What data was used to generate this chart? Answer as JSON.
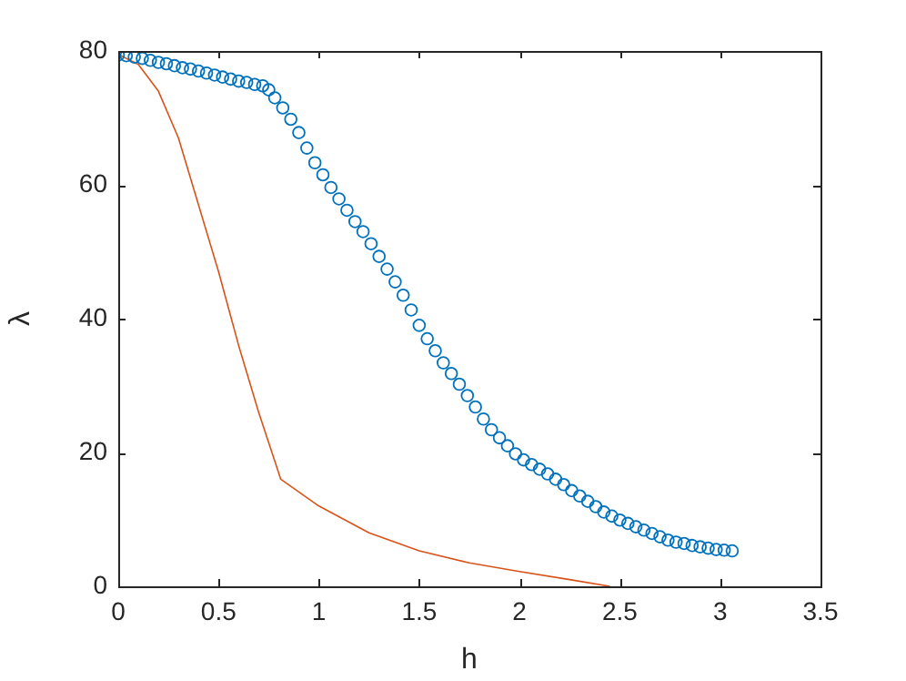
{
  "chart_data": {
    "type": "scatter",
    "xlabel": "h",
    "ylabel": "λ",
    "xlim": [
      0,
      3.5
    ],
    "ylim": [
      0,
      80
    ],
    "xticks": [
      0,
      0.5,
      1,
      1.5,
      2,
      2.5,
      3,
      3.5
    ],
    "yticks": [
      0,
      20,
      40,
      60,
      80
    ],
    "grid": false,
    "legend": false,
    "series": [
      {
        "type": "scatter",
        "marker": "circle",
        "color": "#0072bd",
        "x": [
          0,
          0.04,
          0.08,
          0.12,
          0.16,
          0.2,
          0.24,
          0.28,
          0.32,
          0.36,
          0.4,
          0.44,
          0.48,
          0.52,
          0.56,
          0.6,
          0.64,
          0.68,
          0.72,
          0.75,
          0.78,
          0.82,
          0.86,
          0.9,
          0.94,
          0.98,
          1.02,
          1.06,
          1.1,
          1.14,
          1.18,
          1.22,
          1.26,
          1.3,
          1.34,
          1.38,
          1.42,
          1.46,
          1.5,
          1.54,
          1.58,
          1.62,
          1.66,
          1.7,
          1.74,
          1.78,
          1.82,
          1.86,
          1.9,
          1.94,
          1.98,
          2.02,
          2.06,
          2.1,
          2.14,
          2.18,
          2.22,
          2.26,
          2.3,
          2.34,
          2.38,
          2.42,
          2.46,
          2.5,
          2.54,
          2.58,
          2.62,
          2.66,
          2.7,
          2.74,
          2.78,
          2.82,
          2.86,
          2.9,
          2.94,
          2.98,
          3.02,
          3.06
        ],
        "values": [
          79.4,
          79.3,
          79.1,
          78.9,
          78.6,
          78.3,
          78.1,
          77.8,
          77.5,
          77.3,
          77,
          76.7,
          76.4,
          76.1,
          75.8,
          75.5,
          75.3,
          75,
          74.8,
          74.2,
          73,
          71.5,
          69.8,
          67.8,
          65.5,
          63.3,
          61.5,
          59.6,
          57.9,
          56.2,
          54.5,
          53,
          51.2,
          49.3,
          47.4,
          45.5,
          43.5,
          41.3,
          39,
          37,
          35.2,
          33.4,
          31.8,
          30.2,
          28.5,
          26.8,
          25,
          23.4,
          22.2,
          21,
          19.8,
          18.9,
          18.2,
          17.5,
          16.8,
          16,
          15.2,
          14.3,
          13.5,
          12.7,
          11.9,
          11.1,
          10.5,
          9.9,
          9.4,
          8.9,
          8.4,
          7.9,
          7.4,
          6.9,
          6.6,
          6.4,
          6.1,
          5.9,
          5.7,
          5.5,
          5.4,
          5.3
        ]
      },
      {
        "type": "line",
        "marker": "none",
        "line_style": "solid",
        "color": "#d95319",
        "x": [
          0,
          0.1,
          0.2,
          0.3,
          0.4,
          0.5,
          0.6,
          0.7,
          0.81,
          1,
          1.25,
          1.5,
          1.75,
          2,
          2.25,
          2.45
        ],
        "values": [
          79.5,
          78,
          74,
          67,
          57,
          47,
          36,
          26,
          16,
          12,
          8,
          5.3,
          3.5,
          2.2,
          1,
          0
        ]
      }
    ]
  }
}
